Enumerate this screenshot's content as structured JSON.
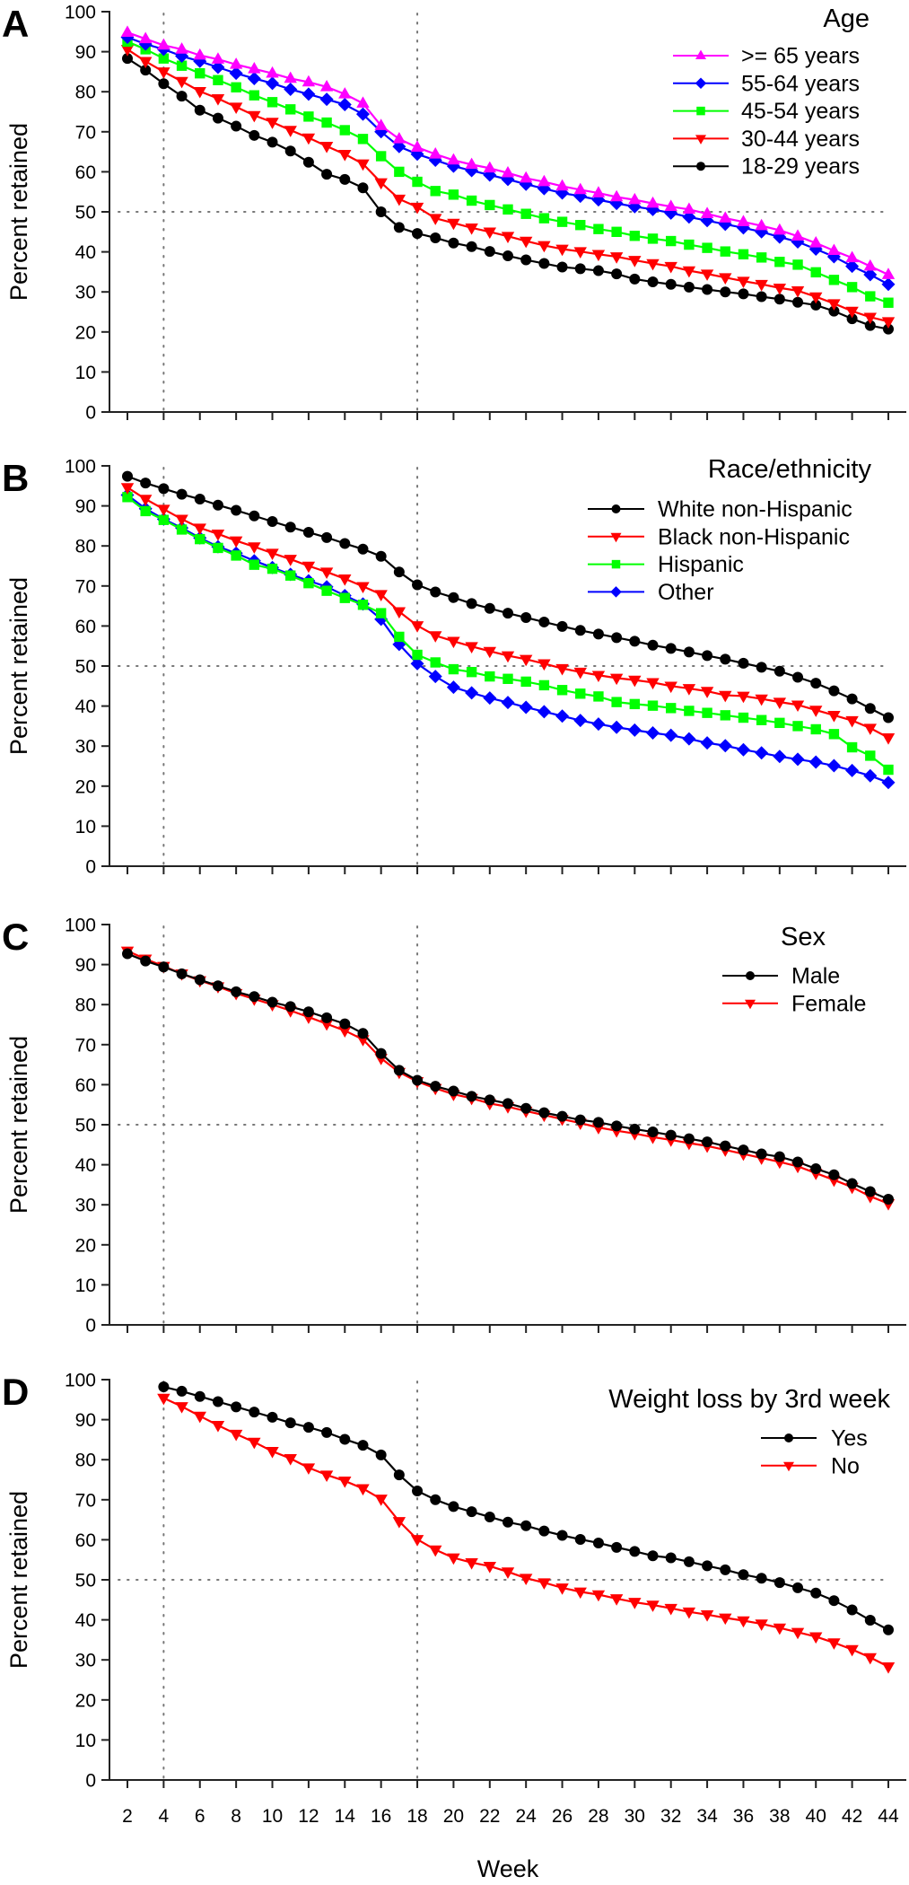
{
  "chart_data": [
    {
      "type": "line",
      "panel": "A",
      "title": "Age",
      "xlabel": "",
      "ylabel": "Percent retained",
      "ylim": [
        0,
        100
      ],
      "yticks": [
        "0",
        "10",
        "20",
        "30",
        "40",
        "50",
        "60",
        "70",
        "80",
        "90",
        "100"
      ],
      "x_start": 2,
      "x_end": 44,
      "reference_lines": {
        "x": [
          4,
          18
        ],
        "y": [
          50
        ]
      },
      "legend_position": "top-right",
      "series": [
        {
          "name": ">= 65 years",
          "color": "#ff00ff",
          "marker": "triangle-up",
          "values": [
            94.8,
            93.2,
            91.6,
            90.6,
            89.1,
            88.1,
            86.8,
            85.7,
            84.6,
            83.3,
            82.4,
            81.2,
            79.4,
            77.1,
            71.5,
            68.2,
            66.1,
            64.4,
            62.9,
            61.8,
            60.9,
            59.7,
            58.4,
            57.5,
            56.4,
            55.5,
            54.7,
            53.7,
            53.0,
            52.1,
            51.3,
            50.6,
            49.5,
            48.4,
            47.5,
            46.5,
            45.4,
            43.9,
            42.2,
            40.3,
            38.5,
            36.4,
            34.3
          ]
        },
        {
          "name": "55-64 years",
          "color": "#0000ff",
          "marker": "diamond",
          "values": [
            93.6,
            91.9,
            90.6,
            88.9,
            87.6,
            86.1,
            84.6,
            83.3,
            82.1,
            80.6,
            79.4,
            78.1,
            76.8,
            74.4,
            70.0,
            66.3,
            64.4,
            62.9,
            61.4,
            60.3,
            59.2,
            58.1,
            56.9,
            55.8,
            54.7,
            53.9,
            53.0,
            52.1,
            51.3,
            50.6,
            49.7,
            48.7,
            47.8,
            46.9,
            46.0,
            45.0,
            43.7,
            42.5,
            40.7,
            38.8,
            36.4,
            34.3,
            31.9
          ]
        },
        {
          "name": "45-54 years",
          "color": "#00ff00",
          "marker": "square",
          "values": [
            92.5,
            90.6,
            88.3,
            86.5,
            84.6,
            82.9,
            81.1,
            79.1,
            77.4,
            75.6,
            73.8,
            72.3,
            70.4,
            68.2,
            63.9,
            60.0,
            57.5,
            55.2,
            54.3,
            52.8,
            51.7,
            50.6,
            49.5,
            48.4,
            47.5,
            46.7,
            45.7,
            45.0,
            44.0,
            43.3,
            42.7,
            41.8,
            41.0,
            40.1,
            39.4,
            38.6,
            37.5,
            36.8,
            34.9,
            33.0,
            31.2,
            28.9,
            27.3
          ]
        },
        {
          "name": "30-44 years",
          "color": "#ff0000",
          "marker": "triangle-down",
          "values": [
            90.6,
            87.6,
            85.0,
            82.6,
            80.1,
            78.3,
            76.2,
            74.1,
            72.4,
            70.4,
            68.5,
            66.4,
            64.4,
            62.0,
            57.3,
            53.2,
            51.2,
            48.4,
            47.2,
            46.0,
            45.0,
            43.9,
            42.7,
            41.6,
            40.7,
            40.1,
            39.4,
            38.8,
            37.9,
            37.1,
            36.4,
            35.3,
            34.5,
            33.6,
            32.7,
            31.9,
            31.0,
            30.3,
            28.8,
            27.1,
            25.2,
            23.7,
            22.6
          ]
        },
        {
          "name": "18-29 years",
          "color": "#000000",
          "marker": "circle",
          "values": [
            88.3,
            85.4,
            82.0,
            78.9,
            75.4,
            73.4,
            71.4,
            69.1,
            67.4,
            65.2,
            62.4,
            59.4,
            58.1,
            56.0,
            50.0,
            46.1,
            44.6,
            43.5,
            42.2,
            41.3,
            40.1,
            39.0,
            38.0,
            37.1,
            36.2,
            35.8,
            35.3,
            34.5,
            33.2,
            32.5,
            31.9,
            31.2,
            30.6,
            30.0,
            29.5,
            28.8,
            28.2,
            27.4,
            26.7,
            25.2,
            23.3,
            21.6,
            20.7
          ]
        }
      ]
    },
    {
      "type": "line",
      "panel": "B",
      "title": "Race/ethnicity",
      "xlabel": "",
      "ylabel": "Percent retained",
      "ylim": [
        0,
        100
      ],
      "yticks": [
        "0",
        "10",
        "20",
        "30",
        "40",
        "50",
        "60",
        "70",
        "80",
        "90",
        "100"
      ],
      "x_start": 2,
      "x_end": 44,
      "reference_lines": {
        "x": [
          4,
          18
        ],
        "y": [
          50
        ]
      },
      "legend_position": "top-right",
      "series": [
        {
          "name": "White non-Hispanic",
          "color": "#000000",
          "marker": "circle",
          "values": [
            97.4,
            95.7,
            94.3,
            92.9,
            91.7,
            90.2,
            88.9,
            87.5,
            86.1,
            84.7,
            83.4,
            82.1,
            80.6,
            79.2,
            77.4,
            73.5,
            70.3,
            68.5,
            67.1,
            65.6,
            64.4,
            63.2,
            62.1,
            61.0,
            59.9,
            58.9,
            58.0,
            57.1,
            56.2,
            55.2,
            54.4,
            53.5,
            52.6,
            51.7,
            50.7,
            49.7,
            48.7,
            47.2,
            45.7,
            43.8,
            41.8,
            39.4,
            37.1
          ]
        },
        {
          "name": "Black non-Hispanic",
          "color": "#ff0000",
          "marker": "triangle-down",
          "values": [
            94.6,
            91.7,
            89.2,
            86.7,
            84.5,
            83.0,
            81.3,
            79.8,
            78.2,
            76.7,
            75.0,
            73.5,
            71.8,
            69.9,
            67.9,
            63.6,
            60.1,
            57.6,
            56.2,
            54.9,
            53.7,
            52.6,
            51.7,
            50.6,
            49.4,
            48.5,
            47.7,
            47.0,
            46.5,
            45.9,
            45.0,
            44.4,
            43.7,
            42.7,
            42.5,
            41.8,
            41.0,
            40.3,
            39.0,
            37.7,
            36.4,
            34.5,
            32.1
          ]
        },
        {
          "name": "Hispanic",
          "color": "#00ff00",
          "marker": "square",
          "values": [
            92.2,
            88.7,
            86.5,
            84.1,
            81.7,
            79.5,
            77.6,
            75.3,
            74.3,
            72.6,
            70.7,
            68.8,
            67.0,
            65.3,
            63.2,
            57.3,
            52.8,
            50.9,
            49.2,
            48.5,
            47.4,
            46.8,
            46.1,
            45.2,
            44.0,
            43.1,
            42.4,
            41.0,
            40.5,
            40.1,
            39.5,
            38.8,
            38.3,
            37.7,
            37.1,
            36.5,
            35.8,
            35.0,
            34.2,
            33.0,
            29.7,
            27.6,
            24.1
          ]
        },
        {
          "name": "Other",
          "color": "#0000ff",
          "marker": "diamond",
          "values": [
            92.7,
            89.3,
            86.7,
            84.5,
            82.0,
            79.8,
            78.2,
            76.3,
            74.6,
            72.9,
            71.3,
            69.8,
            67.6,
            65.5,
            61.7,
            55.4,
            50.6,
            47.4,
            44.7,
            43.3,
            42.0,
            40.9,
            39.7,
            38.6,
            37.5,
            36.4,
            35.5,
            34.7,
            34.0,
            33.3,
            32.7,
            31.8,
            30.8,
            30.1,
            29.1,
            28.3,
            27.4,
            26.7,
            26.0,
            25.1,
            23.9,
            22.6,
            20.9
          ]
        }
      ]
    },
    {
      "type": "line",
      "panel": "C",
      "title": "Sex",
      "xlabel": "",
      "ylabel": "Percent retained",
      "ylim": [
        0,
        100
      ],
      "yticks": [
        "0",
        "10",
        "20",
        "30",
        "40",
        "50",
        "60",
        "70",
        "80",
        "90",
        "100"
      ],
      "x_start": 2,
      "x_end": 44,
      "reference_lines": {
        "x": [
          4,
          18
        ],
        "y": [
          50
        ]
      },
      "legend_position": "top-right",
      "series": [
        {
          "name": "Male",
          "color": "#000000",
          "marker": "circle",
          "values": [
            92.7,
            90.9,
            89.4,
            87.7,
            86.2,
            84.7,
            83.2,
            82.0,
            80.6,
            79.5,
            78.2,
            76.7,
            75.2,
            72.8,
            67.8,
            63.6,
            61.1,
            59.6,
            58.4,
            57.1,
            56.2,
            55.3,
            54.1,
            53.0,
            52.1,
            51.2,
            50.6,
            49.7,
            48.9,
            48.2,
            47.4,
            46.5,
            45.7,
            44.7,
            43.7,
            42.7,
            42.0,
            40.7,
            39.0,
            37.5,
            35.3,
            33.3,
            31.4
          ]
        },
        {
          "name": "Female",
          "color": "#ff0000",
          "marker": "triangle-down",
          "values": [
            93.4,
            91.4,
            89.6,
            87.7,
            86.0,
            84.5,
            82.8,
            81.4,
            80.0,
            78.5,
            76.9,
            75.2,
            73.5,
            71.3,
            66.6,
            63.1,
            60.8,
            59.1,
            57.6,
            56.6,
            55.3,
            54.5,
            53.4,
            52.4,
            51.4,
            50.4,
            49.3,
            48.5,
            47.8,
            46.9,
            46.2,
            45.4,
            44.7,
            43.7,
            42.7,
            41.7,
            40.7,
            39.6,
            37.9,
            36.2,
            34.4,
            32.1,
            30.3
          ]
        }
      ]
    },
    {
      "type": "line",
      "panel": "D",
      "title": "Weight loss by 3rd week",
      "xlabel": "Week",
      "ylabel": "Percent retained",
      "ylim": [
        0,
        100
      ],
      "yticks": [
        "0",
        "10",
        "20",
        "30",
        "40",
        "50",
        "60",
        "70",
        "80",
        "90",
        "100"
      ],
      "xticks": [
        "2",
        "4",
        "6",
        "8",
        "10",
        "12",
        "14",
        "16",
        "18",
        "20",
        "22",
        "24",
        "26",
        "28",
        "30",
        "32",
        "34",
        "36",
        "38",
        "40",
        "42",
        "44"
      ],
      "x_start": 4,
      "x_end": 44,
      "reference_lines": {
        "x": [
          4,
          18
        ],
        "y": [
          50
        ]
      },
      "legend_position": "top-right",
      "series": [
        {
          "name": "Yes",
          "color": "#000000",
          "marker": "circle",
          "values": [
            98.2,
            97.1,
            95.8,
            94.5,
            93.2,
            91.9,
            90.6,
            89.2,
            88.1,
            86.8,
            85.1,
            83.6,
            81.2,
            76.2,
            72.2,
            70.0,
            68.3,
            67.0,
            65.7,
            64.4,
            63.5,
            62.2,
            61.1,
            60.1,
            59.2,
            58.1,
            57.1,
            56.0,
            55.5,
            54.5,
            53.5,
            52.5,
            51.3,
            50.4,
            49.3,
            48.0,
            46.7,
            44.8,
            42.5,
            39.9,
            37.5
          ]
        },
        {
          "name": "No",
          "color": "#ff0000",
          "marker": "triangle-down",
          "values": [
            95.4,
            93.3,
            90.9,
            88.6,
            86.4,
            84.4,
            82.1,
            80.3,
            78.0,
            76.2,
            74.7,
            72.8,
            70.2,
            64.6,
            60.1,
            57.5,
            55.5,
            54.3,
            53.4,
            52.0,
            50.4,
            49.3,
            48.0,
            47.0,
            46.3,
            45.3,
            44.4,
            43.7,
            42.9,
            42.0,
            41.3,
            40.5,
            39.8,
            39.0,
            38.0,
            36.9,
            35.8,
            34.3,
            32.6,
            30.6,
            28.3
          ]
        }
      ]
    }
  ]
}
